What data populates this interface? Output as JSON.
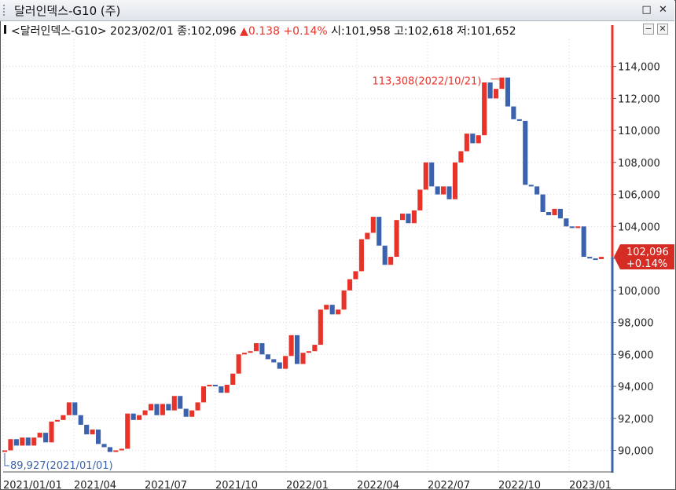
{
  "window": {
    "title": "달러인덱스-G10 (주)",
    "restore_icon": "restore-icon",
    "close_icon": "close-icon"
  },
  "infobar": {
    "name": "<달러인덱스-G10>",
    "date": "2023/02/01",
    "close_label": "종:102,096",
    "change": "▲0.138",
    "change_pct": "+0.14%",
    "open_label": "시:101,958",
    "high_label": "고:102,618",
    "low_label": "저:101,652",
    "min_icon": "minimize-icon",
    "close_icon": "close-icon"
  },
  "colors": {
    "up": "#e8332a",
    "down": "#3b62ad",
    "axis_right_line": "#e8332a",
    "axis_right_line_low": "#3b62ad"
  },
  "chart_data": {
    "type": "candlestick",
    "title": "",
    "y_axis": {
      "ticks": [
        "90,000",
        "92,000",
        "94,000",
        "96,000",
        "98,000",
        "100,000",
        "102,000",
        "104,000",
        "106,000",
        "108,000",
        "110,000",
        "112,000",
        "114,000"
      ],
      "ylim": [
        88700,
        115700
      ]
    },
    "x_axis": {
      "labels": [
        "2021/01/01",
        "2021/04",
        "2021/07",
        "2021/10",
        "2022/01",
        "2022/04",
        "2022/07",
        "2022/10",
        "2023/01"
      ]
    },
    "grid": true,
    "annotations": {
      "max_label": "113,308(2022/10/21)",
      "max_value": 113308,
      "min_label": "89,927(2021/01/01)",
      "min_value": 89927,
      "current_value": "102,096",
      "current_pct": "+0.14%"
    },
    "candles": [
      {
        "o": 89927,
        "c": 90000
      },
      {
        "o": 90000,
        "c": 90700
      },
      {
        "o": 90700,
        "c": 90300
      },
      {
        "o": 90300,
        "c": 90800
      },
      {
        "o": 90800,
        "c": 90300
      },
      {
        "o": 90300,
        "c": 90800
      },
      {
        "o": 90800,
        "c": 91100
      },
      {
        "o": 91100,
        "c": 90500
      },
      {
        "o": 90500,
        "c": 91800
      },
      {
        "o": 91800,
        "c": 91900
      },
      {
        "o": 91900,
        "c": 92200
      },
      {
        "o": 92200,
        "c": 93000
      },
      {
        "o": 93000,
        "c": 92200
      },
      {
        "o": 92200,
        "c": 91600
      },
      {
        "o": 91600,
        "c": 91000
      },
      {
        "o": 91000,
        "c": 91300
      },
      {
        "o": 91300,
        "c": 90400
      },
      {
        "o": 90400,
        "c": 90200
      },
      {
        "o": 90200,
        "c": 89900
      },
      {
        "o": 89900,
        "c": 90000
      },
      {
        "o": 90000,
        "c": 90100
      },
      {
        "o": 90100,
        "c": 92300
      },
      {
        "o": 92300,
        "c": 91900
      },
      {
        "o": 91900,
        "c": 92200
      },
      {
        "o": 92200,
        "c": 92500
      },
      {
        "o": 92500,
        "c": 92900
      },
      {
        "o": 92900,
        "c": 92200
      },
      {
        "o": 92200,
        "c": 92900
      },
      {
        "o": 92900,
        "c": 92500
      },
      {
        "o": 92500,
        "c": 93400
      },
      {
        "o": 93400,
        "c": 92600
      },
      {
        "o": 92600,
        "c": 92100
      },
      {
        "o": 92100,
        "c": 92500
      },
      {
        "o": 92500,
        "c": 93000
      },
      {
        "o": 93000,
        "c": 94000
      },
      {
        "o": 94000,
        "c": 94100
      },
      {
        "o": 94100,
        "c": 94000
      },
      {
        "o": 94000,
        "c": 93600
      },
      {
        "o": 93600,
        "c": 94100
      },
      {
        "o": 94100,
        "c": 94800
      },
      {
        "o": 94800,
        "c": 96000
      },
      {
        "o": 96000,
        "c": 96100
      },
      {
        "o": 96100,
        "c": 96200
      },
      {
        "o": 96200,
        "c": 96700
      },
      {
        "o": 96700,
        "c": 96000
      },
      {
        "o": 96000,
        "c": 95700
      },
      {
        "o": 95700,
        "c": 95500
      },
      {
        "o": 95500,
        "c": 95100
      },
      {
        "o": 95100,
        "c": 95900
      },
      {
        "o": 95900,
        "c": 97200
      },
      {
        "o": 97200,
        "c": 95400
      },
      {
        "o": 95400,
        "c": 96100
      },
      {
        "o": 96100,
        "c": 96200
      },
      {
        "o": 96200,
        "c": 96600
      },
      {
        "o": 96600,
        "c": 98800
      },
      {
        "o": 98800,
        "c": 99100
      },
      {
        "o": 99100,
        "c": 98500
      },
      {
        "o": 98500,
        "c": 98800
      },
      {
        "o": 98800,
        "c": 100000
      },
      {
        "o": 100000,
        "c": 100700
      },
      {
        "o": 100700,
        "c": 101200
      },
      {
        "o": 101200,
        "c": 103200
      },
      {
        "o": 103200,
        "c": 103600
      },
      {
        "o": 103600,
        "c": 104600
      },
      {
        "o": 104600,
        "c": 102800
      },
      {
        "o": 102800,
        "c": 101600
      },
      {
        "o": 101600,
        "c": 102100
      },
      {
        "o": 102100,
        "c": 104400
      },
      {
        "o": 104400,
        "c": 104800
      },
      {
        "o": 104800,
        "c": 104200
      },
      {
        "o": 104200,
        "c": 105000
      },
      {
        "o": 105000,
        "c": 106300
      },
      {
        "o": 106300,
        "c": 108000
      },
      {
        "o": 108000,
        "c": 106500
      },
      {
        "o": 106500,
        "c": 106000
      },
      {
        "o": 106000,
        "c": 106500
      },
      {
        "o": 106500,
        "c": 105700
      },
      {
        "o": 105700,
        "c": 108000
      },
      {
        "o": 108000,
        "c": 108700
      },
      {
        "o": 108700,
        "c": 109800
      },
      {
        "o": 109800,
        "c": 109200
      },
      {
        "o": 109200,
        "c": 109700
      },
      {
        "o": 109700,
        "c": 113000
      },
      {
        "o": 113000,
        "c": 112000
      },
      {
        "o": 112000,
        "c": 112600
      },
      {
        "o": 112600,
        "c": 113308
      },
      {
        "o": 113308,
        "c": 111500
      },
      {
        "o": 111500,
        "c": 110700
      },
      {
        "o": 110700,
        "c": 110600
      },
      {
        "o": 110600,
        "c": 106600
      },
      {
        "o": 106600,
        "c": 106500
      },
      {
        "o": 106500,
        "c": 106000
      },
      {
        "o": 106000,
        "c": 104900
      },
      {
        "o": 104900,
        "c": 104700
      },
      {
        "o": 104700,
        "c": 105100
      },
      {
        "o": 105100,
        "c": 104500
      },
      {
        "o": 104500,
        "c": 104000
      },
      {
        "o": 104000,
        "c": 103900
      },
      {
        "o": 103900,
        "c": 104000
      },
      {
        "o": 104000,
        "c": 102100
      },
      {
        "o": 102100,
        "c": 102000
      },
      {
        "o": 102000,
        "c": 101900
      },
      {
        "o": 101958,
        "c": 102096
      }
    ]
  }
}
